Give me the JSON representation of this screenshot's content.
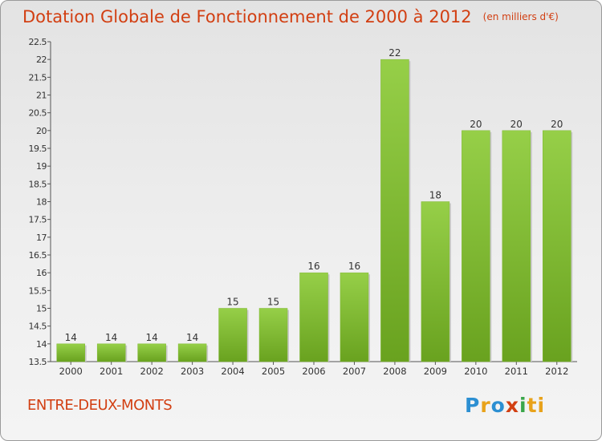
{
  "header": {
    "title": "Dotation Globale de Fonctionnement de 2000 à 2012",
    "subtitle": "(en milliers d'€)"
  },
  "footer": {
    "commune": "ENTRE-DEUX-MONTS",
    "logo_letters": [
      "P",
      "r",
      "o",
      "x",
      "i",
      "ti"
    ]
  },
  "chart_data": {
    "type": "bar",
    "categories": [
      "2000",
      "2001",
      "2002",
      "2003",
      "2004",
      "2005",
      "2006",
      "2007",
      "2008",
      "2009",
      "2010",
      "2011",
      "2012"
    ],
    "values": [
      14,
      14,
      14,
      14,
      15,
      15,
      16,
      16,
      22,
      18,
      20,
      20,
      20
    ],
    "ylim": [
      13.5,
      22.5
    ],
    "yticks": [
      13.5,
      14,
      14.5,
      15,
      15.5,
      16,
      16.5,
      17,
      17.5,
      18,
      18.5,
      19,
      19.5,
      20,
      20.5,
      21,
      21.5,
      22,
      22.5
    ],
    "grid": false,
    "colors": {
      "bar": "#8cc63f",
      "bar_dark": "#6aa323",
      "axis": "#555555"
    }
  }
}
